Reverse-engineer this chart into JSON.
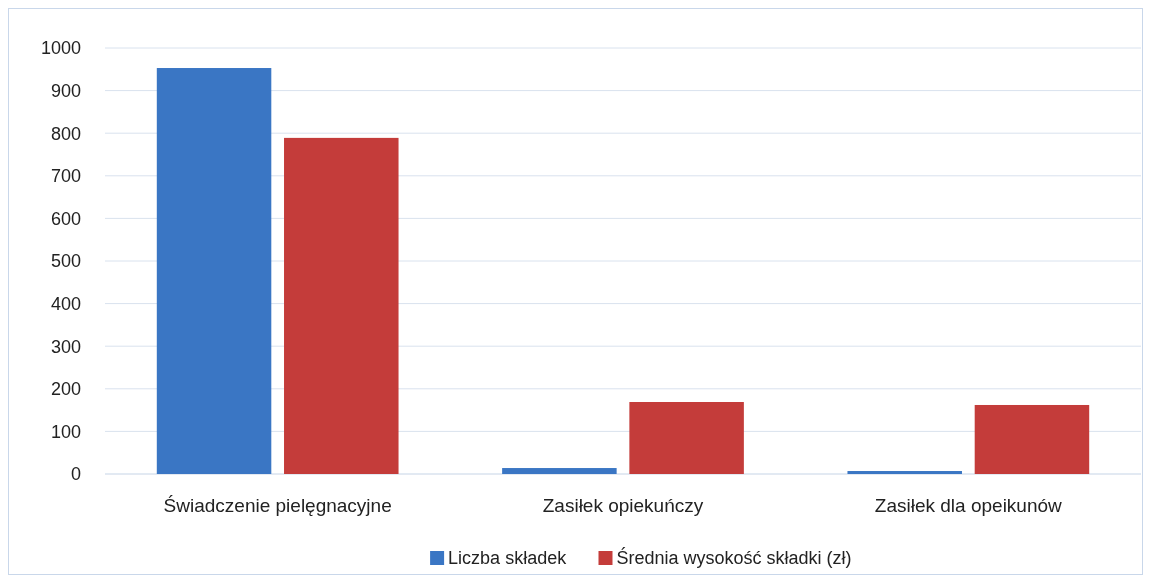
{
  "chart_data": {
    "type": "bar",
    "categories": [
      "Świadczenie pielęgnacyjne",
      "Zasiłek opiekuńczy",
      "Zasiłek dla opeikunów"
    ],
    "series": [
      {
        "name": "Liczba składek",
        "color": "#3a76c4",
        "values": [
          953,
          14,
          7
        ]
      },
      {
        "name": "Średnia wysokość składki (zł)",
        "color": "#c43c3a",
        "values": [
          789,
          169,
          162
        ]
      }
    ],
    "ylim": [
      0,
      1000
    ],
    "yticks": [
      0,
      100,
      200,
      300,
      400,
      500,
      600,
      700,
      800,
      900,
      1000
    ],
    "grid": "y",
    "legend": "bottom"
  }
}
